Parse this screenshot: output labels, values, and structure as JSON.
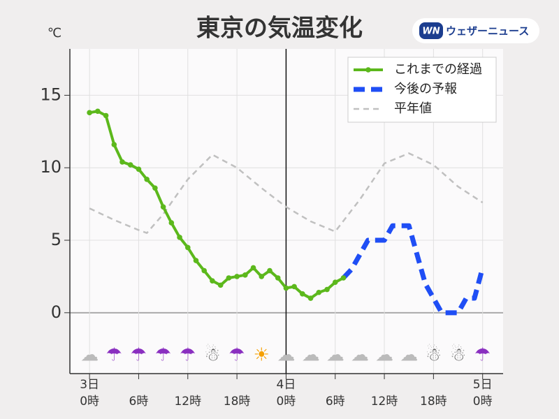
{
  "chart_data": {
    "type": "line",
    "title": "東京の気温変化",
    "y_unit": "℃",
    "logo_mark": "WN",
    "logo_text": "ウェザーニュース",
    "xlim": [
      -2.4,
      50.5
    ],
    "ylim": [
      -4.2,
      18.2
    ],
    "yticks": [
      0,
      5,
      10,
      15
    ],
    "xticks": [
      {
        "value": 0,
        "label": "0時",
        "date": "3日"
      },
      {
        "value": 6,
        "label": "6時"
      },
      {
        "value": 12,
        "label": "12時"
      },
      {
        "value": 18,
        "label": "18時"
      },
      {
        "value": 24,
        "label": "0時",
        "date": "4日"
      },
      {
        "value": 30,
        "label": "6時"
      },
      {
        "value": 36,
        "label": "12時"
      },
      {
        "value": 42,
        "label": "18時"
      },
      {
        "value": 48,
        "label": "0時",
        "date": "5日"
      }
    ],
    "now_line": 24,
    "grid": true,
    "legend": "upper right",
    "series": [
      {
        "name": "これまでの経過",
        "color": "#5cb81c",
        "style": "solid-dots",
        "x": [
          0,
          1,
          2,
          3,
          4,
          5,
          6,
          7,
          8,
          9,
          10,
          11,
          12,
          13,
          14,
          15,
          16,
          17,
          18,
          19,
          20,
          21,
          22,
          23,
          24,
          25,
          26,
          27,
          28,
          29,
          30,
          31
        ],
        "values": [
          13.8,
          13.9,
          13.6,
          11.6,
          10.4,
          10.2,
          9.9,
          9.2,
          8.6,
          7.3,
          6.2,
          5.2,
          4.5,
          3.6,
          2.9,
          2.2,
          1.9,
          2.4,
          2.5,
          2.6,
          3.1,
          2.5,
          2.9,
          2.4,
          1.7,
          1.8,
          1.3,
          1.0,
          1.4,
          1.6,
          2.1,
          2.4
        ]
      },
      {
        "name": "今後の予報",
        "color": "#1f4ef5",
        "style": "bold-dash",
        "x": [
          31,
          32,
          34,
          36,
          37,
          39,
          41,
          43,
          45,
          46,
          47,
          48
        ],
        "values": [
          2.4,
          3.0,
          5.0,
          5.0,
          6.0,
          6.0,
          2.0,
          0,
          0,
          1.0,
          1.0,
          3.1
        ]
      },
      {
        "name": "平年値",
        "color": "#c0c0c0",
        "style": "thin-dash",
        "x": [
          0,
          3,
          6,
          7,
          9,
          12,
          15,
          18,
          21,
          24,
          27,
          30,
          33,
          36,
          39,
          42,
          45,
          48
        ],
        "values": [
          7.2,
          6.4,
          5.7,
          5.5,
          6.8,
          9.2,
          10.9,
          10.0,
          8.6,
          7.3,
          6.3,
          5.6,
          7.8,
          10.3,
          11.0,
          10.2,
          8.7,
          7.6
        ]
      }
    ],
    "weather": {
      "x": [
        0,
        3,
        6,
        9,
        12,
        15,
        18,
        21,
        24,
        27,
        30,
        33,
        36,
        39,
        42,
        45,
        48
      ],
      "icons": [
        "☁",
        "☂",
        "☂",
        "☂",
        "☂",
        "☃",
        "☂",
        "☀",
        "☁",
        "☁",
        "☁",
        "☁",
        "☁",
        "☁",
        "☃",
        "☃",
        "☂"
      ]
    }
  }
}
